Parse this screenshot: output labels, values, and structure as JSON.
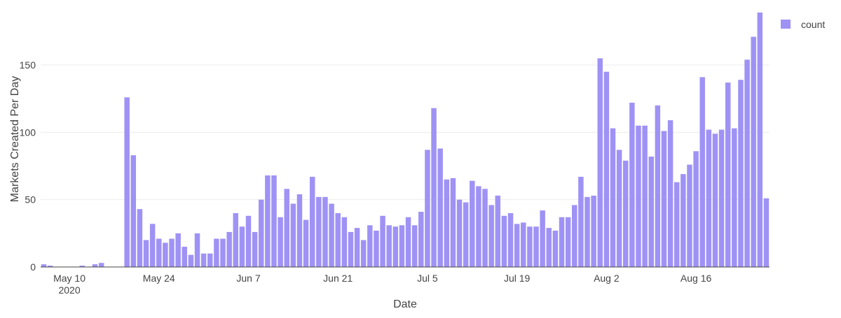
{
  "chart_data": {
    "type": "bar",
    "title": "",
    "xlabel": "Date",
    "ylabel": "Markets Created Per Day",
    "ylim": [
      0,
      190
    ],
    "y_ticks": [
      0,
      50,
      100,
      150
    ],
    "x_ticks": [
      {
        "day_index": 4,
        "label": "May 10",
        "sublabel": "2020"
      },
      {
        "day_index": 18,
        "label": "May 24"
      },
      {
        "day_index": 32,
        "label": "Jun 7"
      },
      {
        "day_index": 46,
        "label": "Jun 21"
      },
      {
        "day_index": 60,
        "label": "Jul 5"
      },
      {
        "day_index": 74,
        "label": "Jul 19"
      },
      {
        "day_index": 88,
        "label": "Aug 2"
      },
      {
        "day_index": 102,
        "label": "Aug 16"
      }
    ],
    "grid": true,
    "legend": {
      "position": "top-right"
    },
    "series": [
      {
        "name": "count",
        "color": "#9f92f5",
        "start_date": "2020-05-06",
        "values": [
          2,
          1,
          0,
          0,
          0,
          0,
          1,
          0,
          2,
          3,
          0,
          0,
          0,
          126,
          83,
          43,
          20,
          32,
          21,
          18,
          21,
          25,
          15,
          9,
          25,
          10,
          10,
          21,
          21,
          26,
          40,
          30,
          38,
          26,
          50,
          68,
          68,
          37,
          58,
          47,
          54,
          35,
          67,
          52,
          52,
          47,
          40,
          37,
          26,
          29,
          20,
          31,
          27,
          38,
          31,
          30,
          31,
          37,
          31,
          41,
          87,
          118,
          88,
          65,
          66,
          50,
          48,
          64,
          60,
          58,
          46,
          53,
          38,
          40,
          32,
          33,
          30,
          30,
          42,
          29,
          27,
          37,
          37,
          46,
          67,
          52,
          53,
          155,
          145,
          103,
          87,
          79,
          122,
          105,
          105,
          82,
          120,
          101,
          109,
          63,
          69,
          76,
          86,
          141,
          102,
          99,
          102,
          137,
          103,
          139,
          154,
          171,
          189,
          51
        ]
      }
    ]
  }
}
